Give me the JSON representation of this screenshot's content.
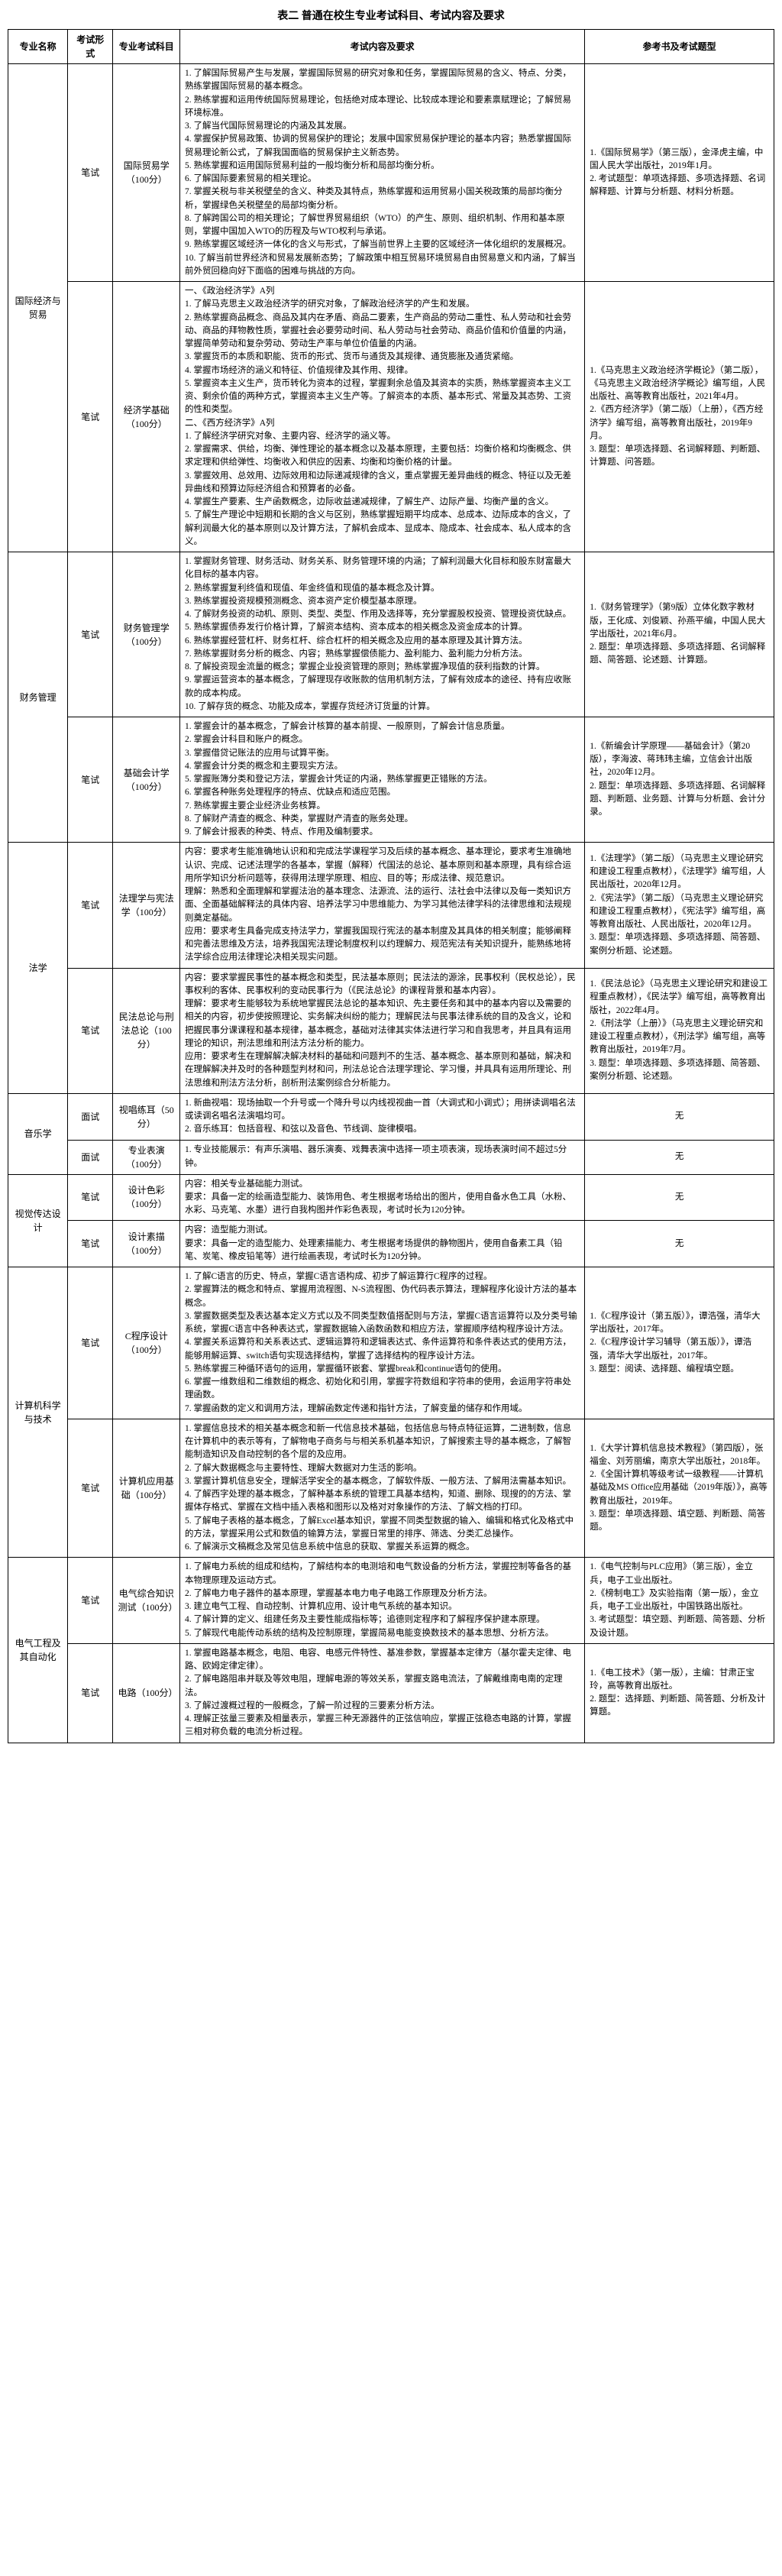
{
  "title": "表二 普通在校生专业考试科目、考试内容及要求",
  "headers": {
    "major": "专业名称",
    "form": "考试形式",
    "subject": "专业考试科目",
    "content": "考试内容及要求",
    "ref": "参考书及考试题型"
  },
  "rows": [
    {
      "major": "国际经济与贸易",
      "majorRowspan": 2,
      "form": "笔试",
      "subject": "国际贸易学（100分）",
      "content": "1. 了解国际贸易产生与发展，掌握国际贸易的研究对象和任务，掌握国际贸易的含义、特点、分类，熟练掌握国际贸易的基本概念。\n2. 熟练掌握和运用传统国际贸易理论，包括绝对成本理论、比较成本理论和要素禀赋理论；了解贸易环境标准。\n3. 了解当代国际贸易理论的内涵及其发展。\n4. 掌握保护贸易政策、协调的贸易保护的理论；发展中国家贸易保护理论的基本内容；熟悉掌握国际贸易理论新公式，了解我国面临的贸易保护主义新态势。\n5. 熟练掌握和运用国际贸易利益的一般均衡分析和局部均衡分析。\n6. 了解国际要素贸易的相关理论。\n7. 掌握关税与非关税壁垒的含义、种类及其特点，熟练掌握和运用贸易小国关税政策的局部均衡分析，掌握绿色关税壁垒的局部均衡分析。\n8. 了解跨国公司的相关理论；了解世界贸易组织（WTO）的产生、原则、组织机制、作用和基本原则，掌握中国加入WTO的历程及与WTO权利与承诺。\n9. 熟练掌握区域经济一体化的含义与形式，了解当前世界上主要的区域经济一体化组织的发展概况。\n10. 了解当前世界经济和贸易发展新态势；了解政策中相互贸易环境贸易自由贸易意义和内涵，了解当前外贸回稳向好下面临的困难与挑战的方向。",
      "ref": "1.《国际贸易学》（第三版），金泽虎主编，中国人民大学出版社，2019年1月。\n2. 考试题型：单项选择题、多项选择题、名词解释题、计算与分析题、材料分析题。"
    },
    {
      "form": "笔试",
      "subject": "经济学基础（100分）",
      "content": "一、《政治经济学》A列\n1. 了解马克思主义政治经济学的研究对象，了解政治经济学的产生和发展。\n2. 熟练掌握商品概念、商品及其内在矛盾、商品二要素，生产商品的劳动二重性、私人劳动和社会劳动、商品的拜物教性质，掌握社会必要劳动时间、私人劳动与社会劳动、商品价值和价值量的内涵，掌握简单劳动和复杂劳动、劳动生产率与单位价值量的内涵。\n3. 掌握货币的本质和职能、货币的形式、货币与通货及其规律、通货膨胀及通货紧缩。\n4. 掌握市场经济的涵义和特征、价值规律及其作用、规律。\n5. 掌握资本主义生产，货币转化为资本的过程，掌握剩余总值及其资本的实质，熟练掌握资本主义工资、剩余价值的两种方式，掌握资本主义生产等。了解资本的本质、基本形式、常量及其态势、工资的性和类型。\n二、《西方经济学》A列\n1. 了解经济学研究对象、主要内容、经济学的涵义等。\n2. 掌握需求、供给，均衡、弹性理论的基本概念以及基本原理，主要包括：均衡价格和均衡概念、供求定理和供给弹性、均衡收入和供应的因素、均衡和均衡价格的计量。\n3. 掌握效用、总效用、边际效用和边际递减规律的含义，重点掌握无差异曲线的概念、特征以及无差异曲线和预算边际经济组合和预算者的必备。\n4. 掌握生产要素、生产函数概念，边际收益递减规律，了解生产、边际产量、均衡产量的含义。\n5. 了解生产理论中短期和长期的含义与区别，熟练掌握短期平均成本、总成本、边际成本的含义，了解利润最大化的基本原则以及计算方法，了解机会成本、显成本、隐成本、社会成本、私人成本的含义。",
      "ref": "1.《马克思主义政治经济学概论》（第二版），《马克思主义政治经济学概论》编写组，人民出版社、高等教育出版社，2021年4月。\n2.《西方经济学》（第二版）（上册），《西方经济学》编写组，高等教育出版社，2019年9月。\n3. 题型：单项选择题、名词解释题、判断题、计算题、问答题。"
    },
    {
      "major": "财务管理",
      "majorRowspan": 2,
      "form": "笔试",
      "subject": "财务管理学（100分）",
      "content": "1. 掌握财务管理、财务活动、财务关系、财务管理环境的内涵；了解利润最大化目标和股东财富最大化目标的基本内容。\n2. 熟练掌握复利终值和现值、年金终值和现值的基本概念及计算。\n3. 熟练掌握投资规模预测概念、资本资产定价模型基本原理。\n4. 了解财务投资的动机、原则、类型、类型、作用及选择等，充分掌握股权投资、管理投资优缺点。\n5. 熟练掌握债券发行价格计算，了解资本结构、资本成本的相关概念及资金成本的计算。\n6. 熟练掌握经营杠杆、财务杠杆、综合杠杆的相关概念及应用的基本原理及其计算方法。\n7. 熟练掌握财务分析的概念、内容；熟练掌握偿债能力、盈利能力、盈利能力分析方法。\n8. 了解投资现金流量的概念；掌握企业投资管理的原则；熟练掌握净现值的获利指数的计算。\n9. 掌握运营资本的基本概念，了解理现存收账款的信用机制方法，了解有效成本的途径、持有应收账款的成本构成。\n10. 了解存货的概念、功能及成本，掌握存货经济订货量的计算。",
      "ref": "1.《财务管理学》（第9版）立体化数字教材版，王化成、刘俊颖、孙燕平编，中国人民大学出版社，2021年6月。\n2. 题型：单项选择题、多项选择题、名词解释题、简答题、论述题、计算题。"
    },
    {
      "form": "笔试",
      "subject": "基础会计学（100分）",
      "content": "1. 掌握会计的基本概念，了解会计核算的基本前提、一般原则，了解会计信息质量。\n2. 掌握会计科目和账户的概念。\n3. 掌握借贷记账法的应用与试算平衡。\n4. 掌握会计分类的概念和主要现实方法。\n5. 掌握账簿分类和登记方法，掌握会计凭证的内涵，熟练掌握更正错账的方法。\n6. 掌握各种账务处理程序的特点、优缺点和适应范围。\n7. 熟练掌握主要企业经济业务核算。\n8. 了解财产清查的概念、种类，掌握财产清查的账务处理。\n9. 了解会计报表的种类、特点、作用及编制要求。",
      "ref": "1.《新编会计学原理——基础会计》（第20版），李海波、蒋玮玮主编，立信会计出版社，2020年12月。\n2. 题型：单项选择题、多项选择题、名词解释题、判断题、业务题、计算与分析题、会计分录。"
    },
    {
      "major": "法学",
      "majorRowspan": 2,
      "form": "笔试",
      "subject": "法理学与宪法学（100分）",
      "content": "内容：要求考生能准确地认识和和完成法学课程学习及后续的基本概念、基本理论，要求考生准确地认识、完成、记述法理学的各基本，掌握（解释）代国法的总论、基本原则和基本原理，具有综合运用所学知识分析问题等，获得用法理学原理、相应、目的等；形成法律、规范意识。\n理解：熟悉和全面理解和掌握法治的基本理念、法源流、法的运行、法社会中法律以及每一类知识方面、全面基础解释法的具体内容、培养法学习中思维能力、为学习其他法律学科的法律思维和法规规则奠定基础。\n应用：要求考生具备完成支持法学力，掌握我国现行宪法的基本制度及其具体的相关制度；能够阐释和完善法思维及方法，培养我国宪法理论制度权利以约理解力、规范宪法有关知识提升，能熟练地将法学综合应用法律理论决相关现实问题。",
      "ref": "1.《法理学》（第二版）（马克思主义理论研究和建设工程重点教材），《法理学》编写组，人民出版社，2020年12月。\n2.《宪法学》（第二版）（马克思主义理论研究和建设工程重点教材），《宪法学》编写组，高等教育出版社、人民出版社，2020年12月。\n3. 题型：单项选择题、多项选择题、简答题、案例分析题、论述题。"
    },
    {
      "form": "笔试",
      "subject": "民法总论与刑法总论（100分）",
      "content": "内容：要求掌握民事性的基本概念和类型，民法基本原则；民法法的源涂，民事权利（民权总论），民事权利的客体、民事权利的变动民事行为（《民法总论》的课程背景和基本内容）。\n理解：要求考生能够较为系统地掌握民法总论的基本知识、先主要任务和其中的基本内容以及需要的相关的内容，初步使按照理论、实务解决纠纷的能力；理解民法与民事法律系统的目的及含义，论和把握民事分课课程和基本规律，基本概念，基础对法律其实体法进行学习和自我思考，并且具有运用理论的知识，刑法思维和刑法方法分析的能力。\n应用：要求考生在理解解决解决材料的基础和问题判不的生活、基本概念、基本原则和基础，解决和在理解解决并及时的各种题型判材和问，刑法总论合法理学理论、学习慢，并具具有运用所理论、刑法思维和刑法方法分析，剖析刑法案例综合分析能力。",
      "ref": "1.《民法总论》（马克思主义理论研究和建设工程重点教材），《民法学》编写组，高等教育出版社，2022年4月。\n2.《刑法学（上册）》（马克思主义理论研究和建设工程重点教材），《刑法学》编写组，高等教育出版社，2019年7月。\n3. 题型：单项选择题、多项选择题、简答题、案例分析题、论述题。"
    },
    {
      "major": "音乐学",
      "majorRowspan": 2,
      "form": "面试",
      "subject": "视唱练耳（50分）",
      "content": "1. 新曲视唱：现场抽取一个升号或一个降升号以内线视视曲一首（大调式和小调式）；用拼读调唱名法或读调名唱名法演唱均可。\n2. 音乐练耳：包括音程、和弦以及音色、节线调、旋律模唱。",
      "ref": "无"
    },
    {
      "form": "面试",
      "subject": "专业表演（100分）",
      "content": "1. 专业技能展示：有声乐演唱、器乐演奏、戏舞表演中选择一项主项表演，现场表演时间不超过5分钟。",
      "ref": "无"
    },
    {
      "major": "视觉传达设计",
      "majorRowspan": 2,
      "form": "笔试",
      "subject": "设计色彩（100分）",
      "content": "内容：相关专业基础能力测试。\n要求：具备一定的绘画造型能力、装饰用色、考生根据考场给出的图片，使用自备水色工具（水粉、水彩、马克笔、水墨）进行自我构图并作彩色表现，考试时长为120分钟。",
      "ref": "无"
    },
    {
      "form": "笔试",
      "subject": "设计素描（100分）",
      "content": "内容：造型能力测试。\n要求：具备一定的造型能力、处理素描能力、考生根据考场提供的静物图片，使用自备素工具（铅笔、炭笔、橡皮铅笔等）进行绘画表现，考试时长为120分钟。",
      "ref": "无"
    },
    {
      "major": "计算机科学与技术",
      "majorRowspan": 2,
      "form": "笔试",
      "subject": "C程序设计（100分）",
      "content": "1. 了解C语言的历史、特点，掌握C语言语构成、初步了解运算行C程序的过程。\n2. 掌握算法的概念和特点、掌握用流程图、N-S流程图、伪代码表示算法，理解程序化设计方法的基本概念。\n3. 掌握数据类型及表达基本定义方式以及不同类型数值搭配则与方法，掌握C语言运算符以及分类号输系统，掌握C语言中各种表达式，掌握数据输入函数函数和相应方法，掌握顺序结构程序设计方法。\n4. 掌握关系运算符和关系表达式、逻辑运算符和逻辑表达式、条件运算符和条件表达式的使用方法，能够用解运算、switch语句实现选择结构，掌握了选择结构的程序设计方法。\n5. 熟练掌握三种循环语句的运用，掌握循环嵌套、掌握break和continue语句的使用。\n6. 掌握一维数组和二维数组的概念、初始化和引用，掌握字符数组和字符串的使用，会运用字符串处理函数。\n7. 掌握函数的定义和调用方法，理解函数定传递和指针方法，了解变量的储存和作用域。",
      "ref": "1.《C程序设计（第五版）》，谭浩强，清华大学出版社，2017年。\n2.《C程序设计学习辅导（第五版）》，谭浩强，清华大学出版社，2017年。\n3. 题型：阅读、选择题、编程填空题。"
    },
    {
      "form": "笔试",
      "subject": "计算机应用基础（100分）",
      "content": "1. 掌握信息技术的相关基本概念和新一代信息技术基础，包括信息与特点特征运算，二进制数，信息在计算机中的表示等有，了解物电子商务与与相关系机基本知识，了解搜索主导的基本概念，了解智能制造知识及自动控制的各个层的及应用。\n2. 了解大数据概念与主要特性、理解大数据对力生活的影响。\n3. 掌握计算机信息安全，理解活学安全的基本概念，了解软件版、一般方法、了解用法需基本知识。\n4. 了解西字处理的基本概念，了解种基本系统的管理工具基本结构，知道、删除、现搜的的方法、掌握体存格式、掌握在文档中插入表格和图形以及格对对象操作的方法、了解文档的打印。\n5. 了解电子表格的基本概念，了解Excel基本知识，掌握不同类型数据的输入、编辑和格式化及格式中的方法，掌握采用公式和数值的输算方法，掌握日常里的排序、筛选、分类汇总操作。\n6. 了解演示文稿概念及常见信息系统中信息的获取、掌握关系运算的概念。",
      "ref": "1.《大学计算机信息技术教程》（第四版），张福金、刘芳丽编，南京大学出版社，2018年。\n2.《全国计算机等级考试一级教程——计算机基础及MS Office应用基础（2019年版）》，高等教育出版社，2019年。\n3. 题型：单项选择题、填空题、判断题、简答题。"
    },
    {
      "major": "电气工程及其自动化",
      "majorRowspan": 2,
      "form": "笔试",
      "subject": "电气综合知识测试（100分）",
      "content": "1. 了解电力系统的组成和结构，了解结构本的电测培和电气数设备的分析方法，掌握控制等备各的基本物理原理及运动方式。\n2. 了解电力电子器件的基本原理，掌握基本电力电子电路工作原理及分析方法。\n3. 建立电气工程、自动控制、计算机应用、设计电气系统的基本知识。\n4. 了解计算的定义、组建任务及主要性能成指标等；追德则定程序和了解程序保护建本原理。\n5. 了解现代电能传动系统的结构及控制原理，掌握简易电能变换数技术的基本思想、分析方法。",
      "ref": "1.《电气控制与PLC应用》（第三版），金立兵，电子工业出版社。\n2.《榜制电工》及实验指南（第一版），金立兵，电子工业出版社，中国铁路出版社。\n3. 考试题型：填空题、判断题、简答题、分析及设计题。"
    },
    {
      "form": "笔试",
      "subject": "电路（100分）",
      "content": "1. 掌握电路基本概念，电阻、电容、电感元件特性、基准参数，掌握基本定律方（基尔霍夫定律、电路、欧姆定律定律）。\n2. 了解电路阻串并联及等效电阻，理解电源的等效关系，掌握支路电流法，了解戴维南电南的定理法。\n3. 了解过渡概过程的一般概念，了解一阶过程的三要素分析方法。\n4. 理解正弦量三要素及相量表示，掌握三种无源器件的正弦信响应，掌握正弦稳态电路的计算，掌握三相对称负载的电流分析过程。",
      "ref": "1.《电工技术》（第一版），主编：甘肃正宝玲，高等教育出版社。\n2. 题型：选择题、判断题、简答题、分析及计算题。"
    }
  ]
}
